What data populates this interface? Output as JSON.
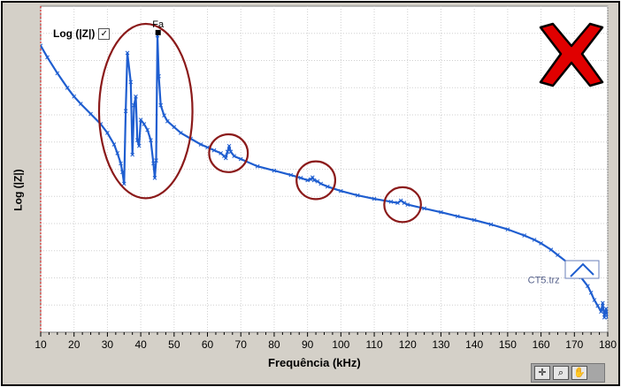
{
  "chart_data": {
    "type": "line",
    "xlabel": "Frequência (kHz)",
    "ylabel": "Log (|Z|)",
    "xlim": [
      10,
      180
    ],
    "xticks": [
      10,
      20,
      30,
      40,
      50,
      60,
      70,
      80,
      90,
      100,
      110,
      120,
      130,
      140,
      150,
      160,
      170,
      180
    ],
    "ylim": [
      0,
      1
    ],
    "series": [
      {
        "name": "Log (|Z|)",
        "color": "#1f5ed0",
        "x": [
          10,
          12,
          15,
          18,
          20,
          22,
          25,
          28,
          30,
          32,
          33,
          34,
          34.5,
          35,
          35.5,
          36,
          37,
          37.5,
          38,
          38.5,
          39,
          39.5,
          40,
          41,
          42,
          43,
          43.8,
          44.2,
          44.6,
          45,
          45.4,
          46,
          47,
          48,
          50,
          52,
          55,
          58,
          60,
          62,
          64,
          65,
          65.5,
          66,
          66.5,
          67,
          68,
          70,
          75,
          80,
          85,
          88,
          90,
          91,
          91.5,
          92,
          93,
          94,
          96,
          100,
          105,
          110,
          115,
          117,
          118,
          119,
          120,
          125,
          130,
          135,
          140,
          145,
          150,
          155,
          158,
          160,
          163,
          165,
          168,
          170,
          172,
          174,
          175,
          176,
          177,
          178,
          178.5,
          179,
          179.5,
          180
        ],
        "values": [
          0.925,
          0.885,
          0.83,
          0.78,
          0.75,
          0.725,
          0.69,
          0.655,
          0.625,
          0.585,
          0.555,
          0.52,
          0.49,
          0.45,
          0.7,
          0.9,
          0.8,
          0.55,
          0.72,
          0.75,
          0.6,
          0.58,
          0.67,
          0.655,
          0.635,
          0.6,
          0.52,
          0.47,
          0.53,
          0.96,
          0.82,
          0.72,
          0.685,
          0.665,
          0.645,
          0.625,
          0.605,
          0.585,
          0.575,
          0.565,
          0.555,
          0.545,
          0.538,
          0.56,
          0.58,
          0.56,
          0.545,
          0.535,
          0.51,
          0.495,
          0.48,
          0.47,
          0.462,
          0.465,
          0.472,
          0.462,
          0.458,
          0.45,
          0.44,
          0.425,
          0.41,
          0.398,
          0.388,
          0.384,
          0.392,
          0.384,
          0.378,
          0.365,
          0.352,
          0.338,
          0.325,
          0.31,
          0.293,
          0.272,
          0.257,
          0.245,
          0.223,
          0.205,
          0.178,
          0.155,
          0.128,
          0.098,
          0.075,
          0.05,
          0.03,
          0.01,
          0.04,
          -0.01,
          0.02,
          -0.01
        ]
      }
    ],
    "annotations": [
      {
        "text": "Fa",
        "x": 45.2,
        "y": 0.97
      },
      {
        "text": "CT5.trz",
        "x": 164,
        "y": 0.12
      }
    ],
    "highlights": [
      {
        "cx": 41.5,
        "cy": 0.7,
        "rx": 14,
        "ry": 0.3
      },
      {
        "cx": 66.3,
        "cy": 0.555,
        "rx": 5.8,
        "ry": 0.065
      },
      {
        "cx": 92.5,
        "cy": 0.462,
        "rx": 5.8,
        "ry": 0.065
      },
      {
        "cx": 118.5,
        "cy": 0.378,
        "rx": 5.5,
        "ry": 0.06
      }
    ],
    "grid": true,
    "legend": "top-left"
  },
  "legend": {
    "label": "Log (|Z|)",
    "check": "✓"
  },
  "toolbar": {
    "crosshair": "✛",
    "zoom": "⌕",
    "pan": "✋"
  },
  "overlay": {
    "status_mark": "X",
    "status_color": "#e00000"
  }
}
